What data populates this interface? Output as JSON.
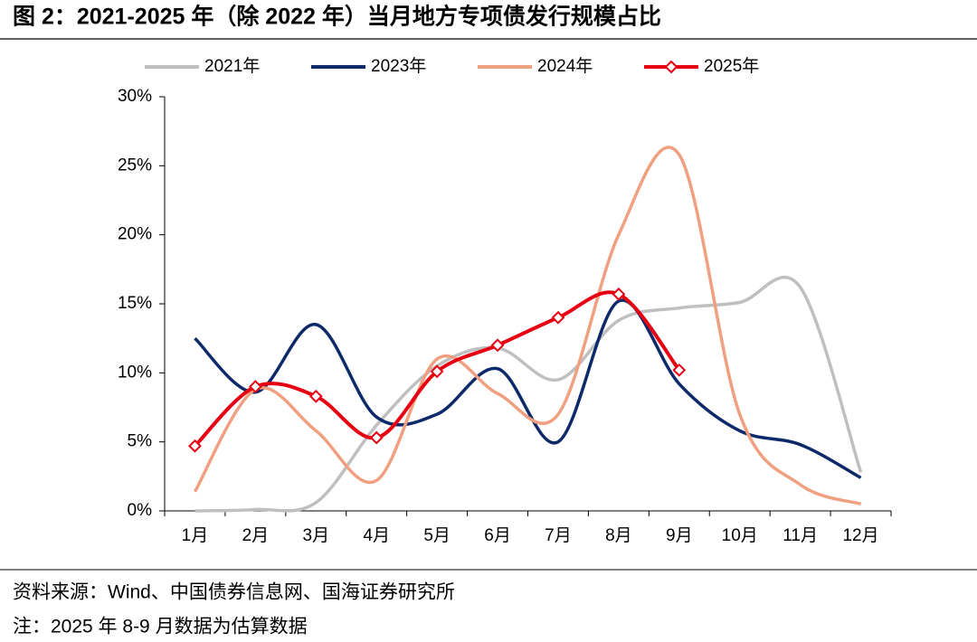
{
  "chart_data": {
    "type": "line",
    "title": "图 2：2021-2025 年（除 2022 年）当月地方专项债发行规模占比",
    "categories": [
      "1月",
      "2月",
      "3月",
      "4月",
      "5月",
      "6月",
      "7月",
      "8月",
      "9月",
      "10月",
      "11月",
      "12月"
    ],
    "series": [
      {
        "name": "2021年",
        "color": "#bfbfbf",
        "values": [
          0.0,
          0.1,
          0.6,
          6.2,
          10.5,
          11.8,
          9.5,
          13.8,
          14.7,
          15.1,
          16.2,
          2.8
        ]
      },
      {
        "name": "2023年",
        "color": "#0c2a6a",
        "values": [
          12.5,
          8.6,
          13.5,
          6.8,
          7.0,
          10.3,
          5.0,
          15.2,
          9.2,
          5.8,
          4.8,
          2.4
        ]
      },
      {
        "name": "2024年",
        "color": "#f0a080",
        "values": [
          1.4,
          8.8,
          5.8,
          2.2,
          11.0,
          8.5,
          7.0,
          20.0,
          25.8,
          7.0,
          1.9,
          0.5
        ]
      },
      {
        "name": "2025年",
        "color": "#e60012",
        "markers": true,
        "values": [
          4.7,
          9.0,
          8.3,
          5.3,
          10.1,
          12.0,
          14.0,
          15.7,
          10.2,
          null,
          null,
          null
        ]
      }
    ],
    "ylim": [
      0,
      30
    ],
    "yticks": [
      {
        "value": 0,
        "label": "0%"
      },
      {
        "value": 5,
        "label": "5%"
      },
      {
        "value": 10,
        "label": "10%"
      },
      {
        "value": 15,
        "label": "15%"
      },
      {
        "value": 20,
        "label": "20%"
      },
      {
        "value": 25,
        "label": "25%"
      },
      {
        "value": 30,
        "label": "30%"
      }
    ],
    "legend": "top",
    "source": "资料来源：Wind、中国债券信息网、国海证券研究所",
    "note": "注：2025 年 8-9 月数据为估算数据"
  }
}
